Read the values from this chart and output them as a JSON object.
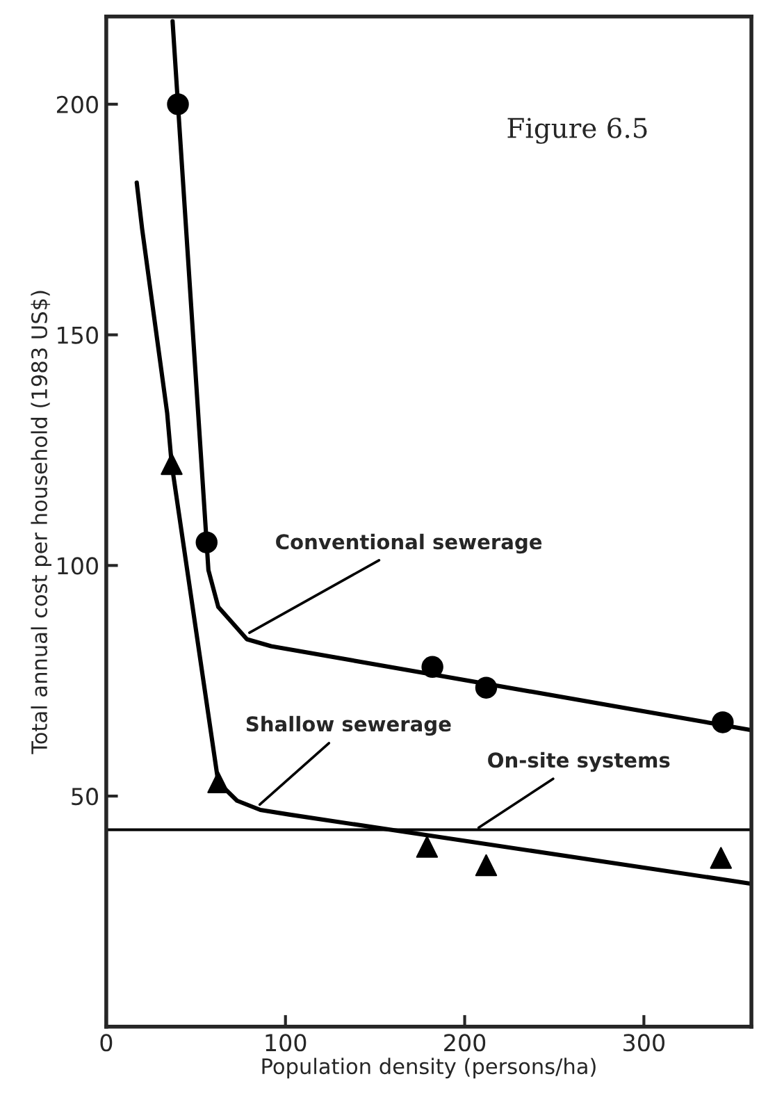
{
  "chart_data": {
    "type": "line",
    "title": "Figure 6.5",
    "xlabel": "Population density (persons/ha)",
    "ylabel": "Total annual cost per household (1983 US$)",
    "xlim": [
      0,
      360
    ],
    "ylim": [
      0,
      219
    ],
    "xticks": [
      0,
      100,
      200,
      300
    ],
    "yticks": [
      50,
      100,
      150,
      200
    ],
    "grid": false,
    "legend": false,
    "series": [
      {
        "color": "#000000",
        "marker": "none",
        "x": [
          37,
          40,
          56,
          57,
          62.5,
          78.5,
          92,
          360
        ],
        "values": [
          218,
          200,
          105,
          99,
          91,
          84,
          82.5,
          64.3
        ]
      },
      {
        "type": "scatter",
        "color": "#000000",
        "marker": "circle",
        "x": [
          40,
          56,
          182,
          212,
          344
        ],
        "values": [
          200,
          105,
          78,
          73.5,
          66
        ]
      },
      {
        "color": "#000000",
        "marker": "none",
        "x": [
          17,
          20,
          34,
          36.5,
          62.5,
          73,
          86,
          102,
          360
        ],
        "values": [
          183,
          173,
          133,
          122,
          53,
          49,
          47,
          46,
          31
        ]
      },
      {
        "type": "scatter",
        "color": "#000000",
        "marker": "triangle",
        "x": [
          36.5,
          62.5,
          179,
          212,
          343
        ],
        "values": [
          122,
          53,
          39,
          35,
          36.6
        ]
      }
    ],
    "ref_lines": [
      {
        "axis": "y",
        "value": 42.7,
        "color": "#000000",
        "line_style": "solid"
      }
    ],
    "annotations": [
      {
        "text": "Conventional sewerage",
        "x": 78,
        "y": 85
      },
      {
        "text": "Shallow sewerage",
        "x": 84,
        "y": 47.6
      },
      {
        "text": "On-site systems",
        "x": 206,
        "y": 42.7
      }
    ]
  }
}
